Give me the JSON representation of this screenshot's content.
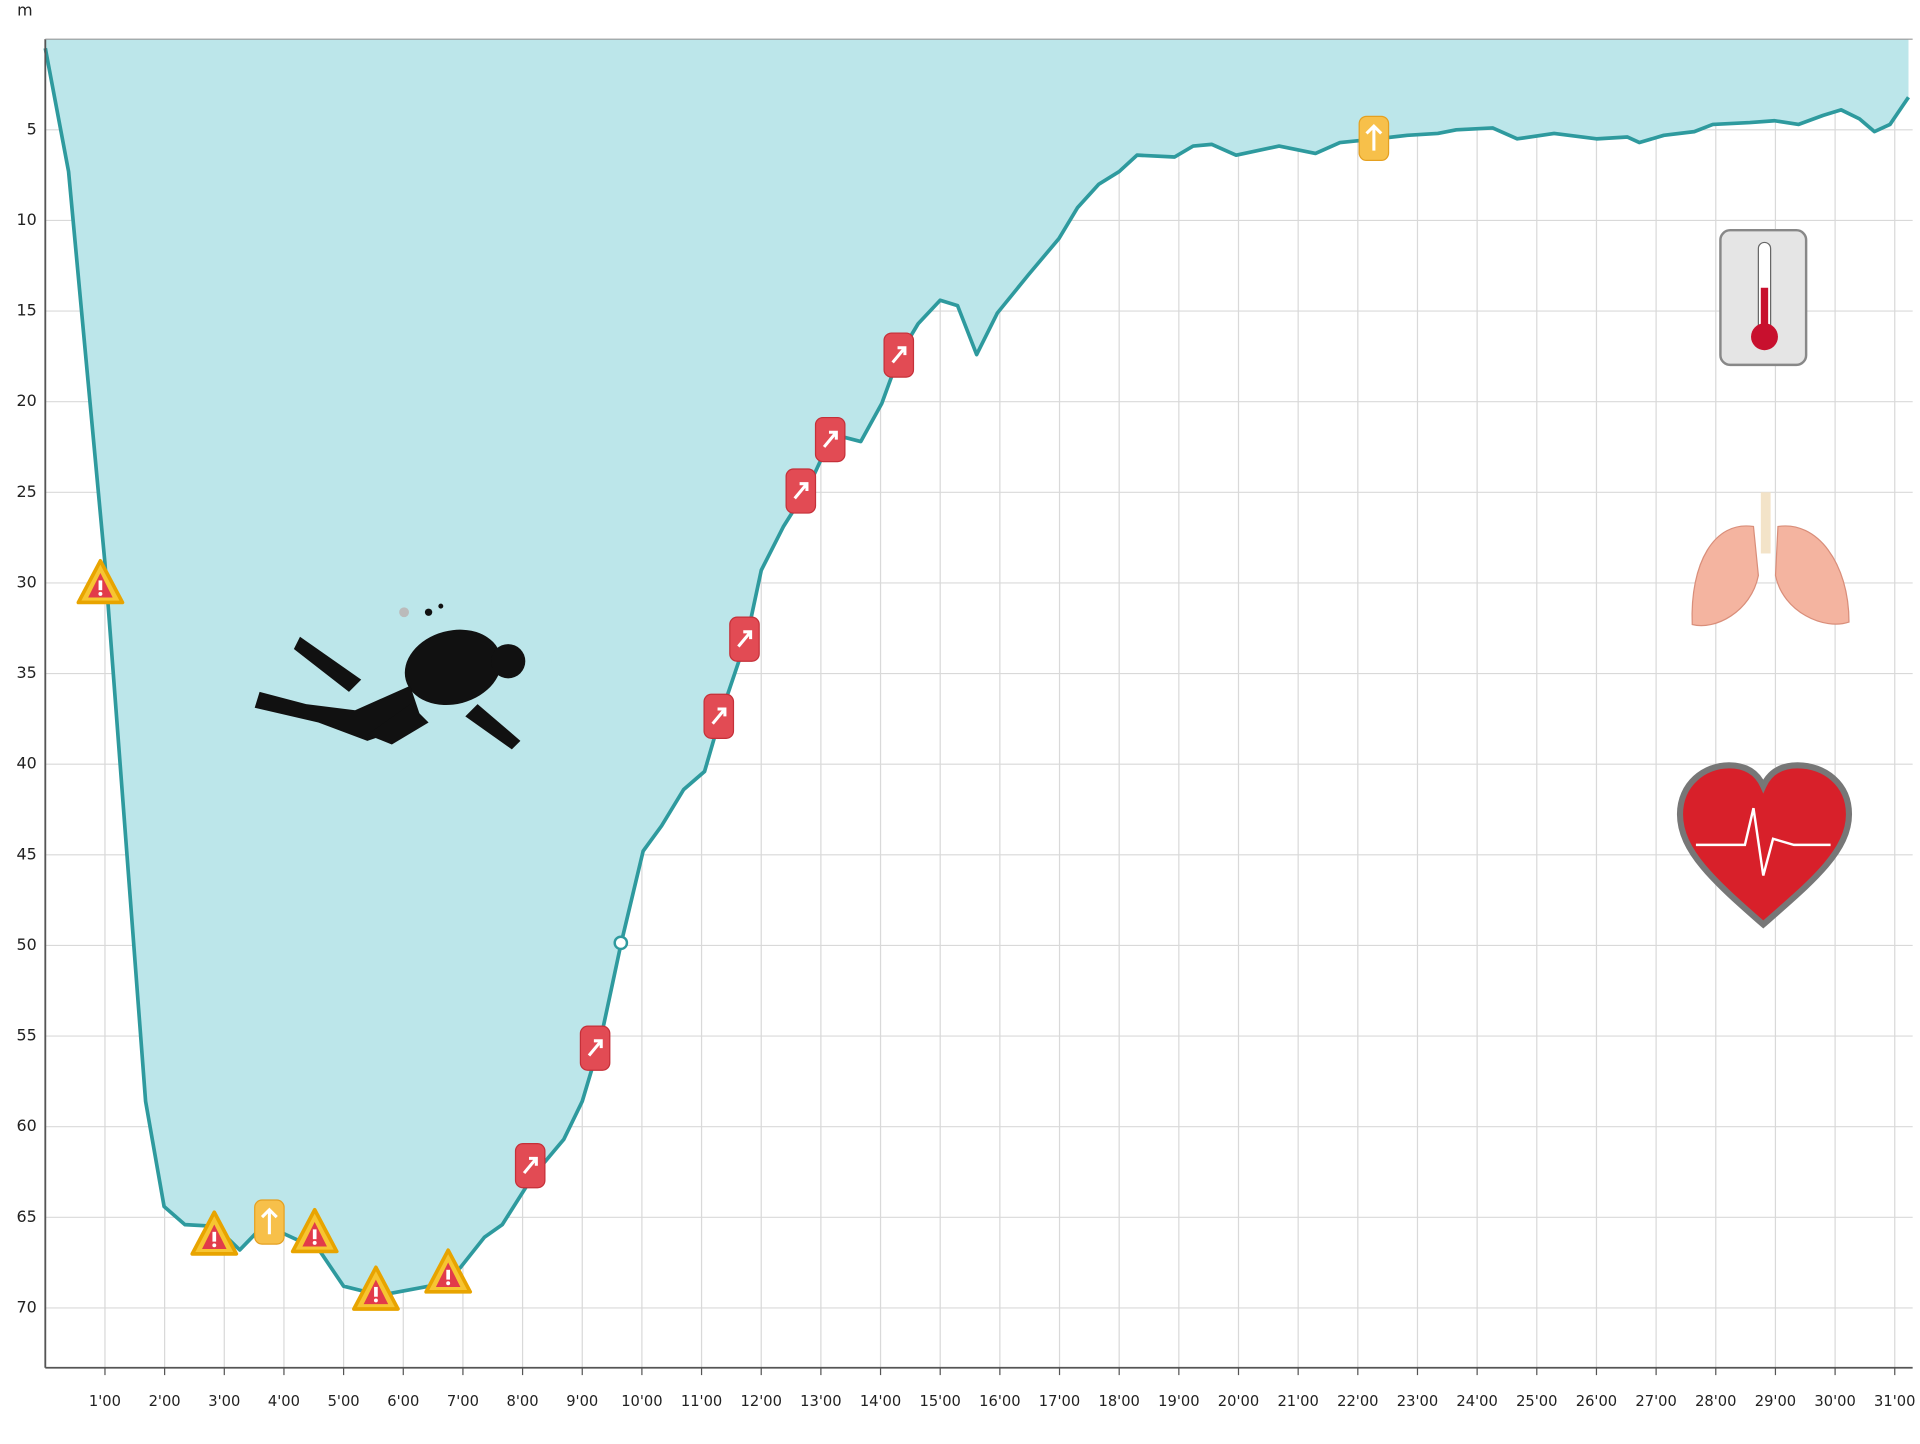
{
  "chart_data": {
    "type": "area",
    "y_label": "m",
    "y_inverted": true,
    "grid": true,
    "color": "#2e9a9e",
    "fill_color": "#bce6ea",
    "xlim": [
      0,
      31.3
    ],
    "ylim": [
      0,
      73.3
    ],
    "yticks": [
      5,
      10,
      15,
      20,
      25,
      30,
      35,
      40,
      45,
      50,
      55,
      60,
      65,
      70
    ],
    "xticks": [
      {
        "value": 1,
        "label": "1'00"
      },
      {
        "value": 2,
        "label": "2'00"
      },
      {
        "value": 3,
        "label": "3'00"
      },
      {
        "value": 4,
        "label": "4'00"
      },
      {
        "value": 5,
        "label": "5'00"
      },
      {
        "value": 6,
        "label": "6'00"
      },
      {
        "value": 7,
        "label": "7'00"
      },
      {
        "value": 8,
        "label": "8'00"
      },
      {
        "value": 9,
        "label": "9'00"
      },
      {
        "value": 10,
        "label": "10'00"
      },
      {
        "value": 11,
        "label": "11'00"
      },
      {
        "value": 12,
        "label": "12'00"
      },
      {
        "value": 13,
        "label": "13'00"
      },
      {
        "value": 14,
        "label": "14'00"
      },
      {
        "value": 15,
        "label": "15'00"
      },
      {
        "value": 16,
        "label": "16'00"
      },
      {
        "value": 17,
        "label": "17'00"
      },
      {
        "value": 18,
        "label": "18'00"
      },
      {
        "value": 19,
        "label": "19'00"
      },
      {
        "value": 20,
        "label": "20'00"
      },
      {
        "value": 21,
        "label": "21'00"
      },
      {
        "value": 22,
        "label": "22'00"
      },
      {
        "value": 23,
        "label": "23'00"
      },
      {
        "value": 24,
        "label": "24'00"
      },
      {
        "value": 25,
        "label": "25'00"
      },
      {
        "value": 26,
        "label": "26'00"
      },
      {
        "value": 27,
        "label": "27'00"
      },
      {
        "value": 28,
        "label": "28'00"
      },
      {
        "value": 29,
        "label": "29'00"
      },
      {
        "value": 30,
        "label": "30'00"
      },
      {
        "value": 31,
        "label": "31'00"
      }
    ],
    "x": [
      0,
      0.39,
      1.0,
      1.68,
      1.99,
      2.34,
      2.85,
      3.26,
      3.67,
      4.59,
      5.0,
      5.61,
      6.43,
      6.95,
      7.36,
      7.66,
      8.18,
      8.69,
      9.0,
      9.3,
      9.65,
      10.02,
      10.33,
      10.7,
      11.05,
      11.35,
      11.76,
      12.0,
      12.37,
      12.79,
      13.2,
      13.67,
      14.02,
      14.32,
      14.63,
      15.0,
      15.29,
      15.61,
      15.96,
      16.48,
      16.99,
      17.3,
      17.66,
      18.0,
      18.3,
      18.93,
      19.24,
      19.55,
      19.96,
      20.68,
      21.29,
      21.7,
      22.32,
      22.83,
      23.34,
      23.65,
      24.26,
      24.67,
      25.29,
      26.0,
      26.52,
      26.72,
      27.13,
      27.64,
      27.95,
      28.57,
      28.98,
      29.39,
      29.8,
      30.1,
      30.41,
      30.66,
      30.92,
      31.23
    ],
    "values": [
      0.5,
      7.3,
      28.9,
      58.6,
      64.4,
      65.4,
      65.5,
      66.8,
      65.4,
      66.8,
      68.8,
      69.3,
      68.8,
      67.8,
      66.1,
      65.4,
      62.7,
      60.7,
      58.6,
      55.3,
      49.9,
      44.8,
      43.4,
      41.4,
      40.4,
      37.0,
      33.0,
      29.3,
      26.9,
      24.7,
      21.8,
      22.2,
      20.1,
      17.4,
      15.7,
      14.4,
      14.7,
      17.4,
      15.1,
      13.0,
      11.0,
      9.3,
      8.0,
      7.3,
      6.4,
      6.5,
      5.9,
      5.8,
      6.4,
      5.9,
      6.3,
      5.7,
      5.5,
      5.3,
      5.2,
      5.0,
      4.9,
      5.5,
      5.2,
      5.5,
      5.4,
      5.7,
      5.3,
      5.1,
      4.7,
      4.6,
      4.5,
      4.7,
      4.2,
      3.9,
      4.4,
      5.1,
      4.7,
      3.2
    ]
  }
}
